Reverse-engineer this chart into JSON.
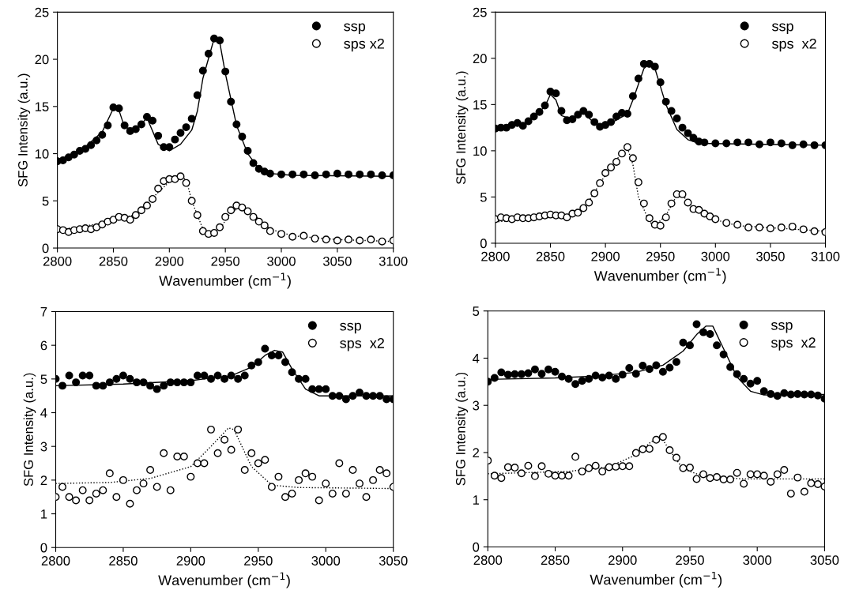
{
  "chart_data": [
    {
      "type": "scatter",
      "xlabel": "Wavenumber (cm$^{−1}$)",
      "ylabel": "SFG Intensity (a.u.)",
      "xlim": [
        2800,
        3100
      ],
      "xticks": [
        2800,
        2850,
        2900,
        2950,
        3000,
        3050,
        3100
      ],
      "ylim": [
        0,
        25
      ],
      "yticks": [
        0,
        5,
        10,
        15,
        20,
        25
      ],
      "legend": "top right",
      "grid": false,
      "marker": "circle",
      "series": [
        {
          "name": "ssp",
          "color": "#000000",
          "x": [
            2800,
            2805,
            2810,
            2815,
            2820,
            2825,
            2830,
            2835,
            2840,
            2845,
            2850,
            2855,
            2860,
            2865,
            2870,
            2875,
            2880,
            2885,
            2890,
            2895,
            2900,
            2905,
            2910,
            2915,
            2920,
            2925,
            2930,
            2935,
            2940,
            2945,
            2950,
            2955,
            2960,
            2965,
            2970,
            2975,
            2980,
            2985,
            2990,
            3000,
            3010,
            3020,
            3030,
            3040,
            3050,
            3060,
            3070,
            3080,
            3090,
            3100
          ],
          "values": [
            9.2,
            9.3,
            9.6,
            9.9,
            10.3,
            10.5,
            10.9,
            11.4,
            12.0,
            13.0,
            14.9,
            14.8,
            13.0,
            12.4,
            12.6,
            13.1,
            13.9,
            13.5,
            11.9,
            10.7,
            10.7,
            11.5,
            12.2,
            12.8,
            13.7,
            16.2,
            18.8,
            20.6,
            22.2,
            22.0,
            18.7,
            15.5,
            13.1,
            11.8,
            10.3,
            9.0,
            8.4,
            8.1,
            7.9,
            7.8,
            7.8,
            7.8,
            7.7,
            7.8,
            7.9,
            7.8,
            7.8,
            7.8,
            7.7,
            7.7
          ]
        },
        {
          "name": "sps x2",
          "color": "#ffffff",
          "x": [
            2800,
            2805,
            2810,
            2815,
            2820,
            2825,
            2830,
            2835,
            2840,
            2845,
            2850,
            2855,
            2860,
            2865,
            2870,
            2875,
            2880,
            2885,
            2890,
            2895,
            2900,
            2905,
            2910,
            2915,
            2920,
            2925,
            2930,
            2935,
            2940,
            2945,
            2950,
            2955,
            2960,
            2965,
            2970,
            2975,
            2980,
            2985,
            2990,
            3000,
            3010,
            3020,
            3030,
            3040,
            3050,
            3060,
            3070,
            3080,
            3090,
            3100
          ],
          "values": [
            2.0,
            1.9,
            1.7,
            1.9,
            2.0,
            2.1,
            2.0,
            2.2,
            2.5,
            2.8,
            3.0,
            3.3,
            3.2,
            3.0,
            3.5,
            4.0,
            4.5,
            5.2,
            6.3,
            7.1,
            7.3,
            7.3,
            7.6,
            6.9,
            5.0,
            3.5,
            1.8,
            1.5,
            1.6,
            2.2,
            3.3,
            4.0,
            4.5,
            4.3,
            3.9,
            3.3,
            2.8,
            2.4,
            1.8,
            1.5,
            1.2,
            1.3,
            1.0,
            0.9,
            0.8,
            0.9,
            0.8,
            0.9,
            0.7,
            0.8
          ]
        },
        {
          "type": "line",
          "marker": "none",
          "color": "#000000",
          "line_style": "solid",
          "x": [
            2800,
            2820,
            2840,
            2850,
            2855,
            2860,
            2870,
            2880,
            2890,
            2900,
            2910,
            2920,
            2925,
            2930,
            2940,
            2945,
            2950,
            2960,
            2970,
            2980,
            2990,
            3010,
            3100
          ],
          "values": [
            9.3,
            10.2,
            12.3,
            14.8,
            14.6,
            12.8,
            12.5,
            13.8,
            11.0,
            10.3,
            11.0,
            12.5,
            14.5,
            18.0,
            22.2,
            21.8,
            18.5,
            13.0,
            10.0,
            8.4,
            7.9,
            7.7,
            7.6
          ]
        },
        {
          "type": "line",
          "marker": "none",
          "color": "#000000",
          "line_style": "dotted",
          "x": [
            2800,
            2850,
            2870,
            2890,
            2900,
            2910,
            2915,
            2920,
            2930,
            2935,
            2945,
            2955,
            2965,
            2975,
            2990,
            3010,
            3050,
            3100
          ],
          "values": [
            1.9,
            2.8,
            3.6,
            5.9,
            7.0,
            7.5,
            7.3,
            5.0,
            2.0,
            1.3,
            2.0,
            3.8,
            4.4,
            3.6,
            2.0,
            1.3,
            0.9,
            0.7
          ]
        }
      ]
    },
    {
      "type": "scatter",
      "xlabel": "Wavenumber (cm$^{−1}$)",
      "ylabel": "SFG Intensity (a.u.)",
      "xlim": [
        2800,
        3100
      ],
      "xticks": [
        2800,
        2850,
        2900,
        2950,
        3000,
        3050,
        3100
      ],
      "ylim": [
        0,
        25
      ],
      "yticks": [
        0,
        5,
        10,
        15,
        20,
        25
      ],
      "legend": "top right",
      "grid": false,
      "marker": "circle",
      "series": [
        {
          "name": "ssp",
          "color": "#000000",
          "x": [
            2800,
            2805,
            2810,
            2815,
            2820,
            2825,
            2830,
            2835,
            2840,
            2845,
            2850,
            2855,
            2860,
            2865,
            2870,
            2875,
            2880,
            2885,
            2890,
            2895,
            2900,
            2905,
            2910,
            2915,
            2920,
            2925,
            2930,
            2935,
            2940,
            2945,
            2950,
            2955,
            2960,
            2965,
            2970,
            2975,
            2980,
            2985,
            2990,
            3000,
            3010,
            3020,
            3030,
            3040,
            3050,
            3060,
            3070,
            3080,
            3090,
            3100
          ],
          "values": [
            12.4,
            12.5,
            12.5,
            12.8,
            13.0,
            12.7,
            13.2,
            13.7,
            14.2,
            14.9,
            16.4,
            16.2,
            14.3,
            13.3,
            13.4,
            13.9,
            14.3,
            13.9,
            13.1,
            12.6,
            12.8,
            13.1,
            13.7,
            14.1,
            14.0,
            15.9,
            17.8,
            19.4,
            19.4,
            19.1,
            17.4,
            15.3,
            14.3,
            13.5,
            12.5,
            11.9,
            11.4,
            11.0,
            10.9,
            10.8,
            10.8,
            10.9,
            10.9,
            10.7,
            10.9,
            10.8,
            10.6,
            10.7,
            10.6,
            10.6
          ]
        },
        {
          "name": "sps  x2",
          "color": "#ffffff",
          "x": [
            2800,
            2805,
            2810,
            2815,
            2820,
            2825,
            2830,
            2835,
            2840,
            2845,
            2850,
            2855,
            2860,
            2865,
            2870,
            2875,
            2880,
            2885,
            2890,
            2895,
            2900,
            2905,
            2910,
            2915,
            2920,
            2925,
            2930,
            2935,
            2940,
            2945,
            2950,
            2955,
            2960,
            2965,
            2970,
            2975,
            2980,
            2985,
            2990,
            2995,
            3000,
            3010,
            3020,
            3030,
            3040,
            3050,
            3060,
            3070,
            3080,
            3090,
            3100
          ],
          "values": [
            2.6,
            2.8,
            2.7,
            2.6,
            2.8,
            2.7,
            2.7,
            2.8,
            2.9,
            3.0,
            3.1,
            3.0,
            3.0,
            2.8,
            3.2,
            3.3,
            3.8,
            4.4,
            5.4,
            6.5,
            7.6,
            8.2,
            8.8,
            9.7,
            10.4,
            9.2,
            6.6,
            4.3,
            2.7,
            2.0,
            1.9,
            2.8,
            4.3,
            5.3,
            5.3,
            4.4,
            3.7,
            3.6,
            3.2,
            2.9,
            2.6,
            2.2,
            2.0,
            1.7,
            1.7,
            1.6,
            1.7,
            1.8,
            1.5,
            1.3,
            1.2
          ]
        },
        {
          "type": "line",
          "marker": "none",
          "color": "#000000",
          "line_style": "solid",
          "x": [
            2800,
            2830,
            2845,
            2850,
            2855,
            2860,
            2870,
            2880,
            2890,
            2895,
            2905,
            2920,
            2925,
            2935,
            2940,
            2945,
            2955,
            2965,
            2975,
            2985,
            3100
          ],
          "values": [
            12.3,
            13.1,
            14.8,
            16.1,
            15.5,
            13.8,
            13.4,
            14.1,
            13.0,
            12.6,
            13.0,
            14.0,
            15.5,
            18.9,
            19.4,
            18.9,
            15.0,
            12.3,
            11.2,
            10.8,
            10.6
          ]
        },
        {
          "type": "line",
          "marker": "none",
          "color": "#000000",
          "line_style": "dotted",
          "x": [
            2800,
            2860,
            2880,
            2900,
            2915,
            2920,
            2925,
            2930,
            2940,
            2945,
            2955,
            2965,
            2970,
            2980,
            2995,
            3020,
            3100
          ],
          "values": [
            2.3,
            2.9,
            3.6,
            7.4,
            9.8,
            10.3,
            8.5,
            5.0,
            2.3,
            1.9,
            3.0,
            5.2,
            5.2,
            3.8,
            2.7,
            1.9,
            1.3
          ]
        }
      ]
    },
    {
      "type": "scatter",
      "xlabel": "Wavenumber (cm$^{−1}$)",
      "ylabel": "SFG Intensity (a.u.)",
      "xlim": [
        2800,
        3050
      ],
      "xticks": [
        2800,
        2850,
        2900,
        2950,
        3000,
        3050
      ],
      "ylim": [
        0,
        7
      ],
      "yticks": [
        0,
        1,
        2,
        3,
        4,
        5,
        6,
        7
      ],
      "legend": "top right",
      "grid": false,
      "marker": "circle",
      "series": [
        {
          "name": "ssp",
          "color": "#000000",
          "x": [
            2800,
            2805,
            2810,
            2815,
            2820,
            2825,
            2830,
            2835,
            2840,
            2845,
            2850,
            2855,
            2860,
            2865,
            2870,
            2875,
            2880,
            2885,
            2890,
            2895,
            2900,
            2905,
            2910,
            2915,
            2920,
            2925,
            2930,
            2935,
            2940,
            2945,
            2950,
            2955,
            2960,
            2965,
            2970,
            2975,
            2980,
            2985,
            2990,
            2995,
            3000,
            3005,
            3010,
            3015,
            3020,
            3025,
            3030,
            3035,
            3040,
            3045,
            3050
          ],
          "values": [
            5.0,
            4.8,
            5.1,
            4.9,
            5.1,
            5.1,
            4.8,
            4.8,
            4.9,
            5.0,
            5.1,
            5.0,
            4.9,
            4.9,
            4.8,
            4.7,
            4.8,
            4.9,
            4.9,
            4.9,
            4.9,
            5.1,
            5.1,
            5.0,
            5.1,
            5.0,
            5.1,
            5.0,
            5.1,
            5.4,
            5.5,
            5.9,
            5.7,
            5.7,
            5.5,
            5.2,
            5.0,
            5.0,
            4.7,
            4.7,
            4.7,
            4.5,
            4.5,
            4.4,
            4.5,
            4.6,
            4.5,
            4.5,
            4.5,
            4.4,
            4.4
          ]
        },
        {
          "name": "sps  x2",
          "color": "#ffffff",
          "x": [
            2800,
            2805,
            2810,
            2815,
            2820,
            2825,
            2830,
            2835,
            2840,
            2845,
            2850,
            2855,
            2860,
            2865,
            2870,
            2875,
            2880,
            2885,
            2890,
            2895,
            2900,
            2905,
            2910,
            2915,
            2920,
            2925,
            2930,
            2935,
            2940,
            2945,
            2950,
            2955,
            2960,
            2965,
            2970,
            2975,
            2980,
            2985,
            2990,
            2995,
            3000,
            3005,
            3010,
            3015,
            3020,
            3025,
            3030,
            3035,
            3040,
            3045,
            3050
          ],
          "values": [
            1.5,
            1.8,
            1.5,
            1.4,
            1.7,
            1.4,
            1.6,
            1.7,
            2.2,
            1.5,
            2.0,
            1.3,
            1.7,
            1.9,
            2.3,
            1.8,
            2.8,
            1.7,
            2.7,
            2.7,
            2.1,
            2.5,
            2.5,
            3.5,
            2.8,
            3.2,
            2.9,
            3.5,
            2.3,
            2.8,
            2.5,
            2.6,
            1.8,
            2.1,
            1.5,
            1.6,
            2.0,
            2.2,
            2.1,
            1.4,
            1.9,
            1.6,
            2.5,
            1.6,
            2.3,
            1.9,
            1.5,
            2.0,
            2.3,
            2.2,
            1.8
          ]
        },
        {
          "type": "line",
          "marker": "none",
          "color": "#000000",
          "line_style": "solid",
          "x": [
            2800,
            2850,
            2900,
            2930,
            2945,
            2955,
            2962,
            2968,
            2975,
            2985,
            2995,
            3050
          ],
          "values": [
            4.8,
            4.85,
            4.95,
            5.1,
            5.35,
            5.7,
            5.85,
            5.8,
            5.3,
            4.7,
            4.5,
            4.5
          ]
        },
        {
          "type": "line",
          "marker": "none",
          "color": "#000000",
          "line_style": "dotted",
          "x": [
            2800,
            2840,
            2870,
            2900,
            2915,
            2928,
            2932,
            2945,
            2960,
            2980,
            3050
          ],
          "values": [
            1.9,
            1.93,
            2.05,
            2.4,
            3.0,
            3.55,
            3.5,
            2.4,
            1.85,
            1.78,
            1.75
          ]
        }
      ]
    },
    {
      "type": "scatter",
      "xlabel": "Wavenumber (cm$^{−1}$)",
      "ylabel": "SFG Intensity (a.u.)",
      "xlim": [
        2800,
        3050
      ],
      "xticks": [
        2800,
        2850,
        2900,
        2950,
        3000,
        3050
      ],
      "ylim": [
        0,
        5
      ],
      "yticks": [
        0,
        1,
        2,
        3,
        4,
        5
      ],
      "legend": "top right",
      "grid": false,
      "marker": "circle",
      "series": [
        {
          "name": "ssp",
          "color": "#000000",
          "x": [
            2800,
            2805,
            2810,
            2815,
            2820,
            2825,
            2830,
            2835,
            2840,
            2845,
            2850,
            2855,
            2860,
            2865,
            2870,
            2875,
            2880,
            2885,
            2890,
            2895,
            2900,
            2905,
            2910,
            2915,
            2920,
            2925,
            2930,
            2935,
            2940,
            2945,
            2950,
            2955,
            2960,
            2965,
            2970,
            2975,
            2980,
            2985,
            2990,
            2995,
            3000,
            3005,
            3010,
            3015,
            3020,
            3025,
            3030,
            3035,
            3040,
            3045,
            3050
          ],
          "values": [
            3.5,
            3.58,
            3.7,
            3.65,
            3.66,
            3.66,
            3.68,
            3.76,
            3.67,
            3.76,
            3.71,
            3.61,
            3.56,
            3.45,
            3.52,
            3.56,
            3.63,
            3.59,
            3.63,
            3.56,
            3.65,
            3.79,
            3.67,
            3.84,
            3.77,
            3.85,
            3.71,
            3.8,
            3.92,
            4.33,
            4.27,
            4.72,
            4.55,
            4.51,
            4.27,
            4.08,
            3.81,
            3.66,
            3.56,
            3.46,
            3.52,
            3.3,
            3.24,
            3.2,
            3.26,
            3.23,
            3.24,
            3.23,
            3.23,
            3.21,
            3.14
          ]
        },
        {
          "name": "sps  x2",
          "color": "#ffffff",
          "x": [
            2800,
            2805,
            2810,
            2815,
            2820,
            2825,
            2830,
            2835,
            2840,
            2845,
            2850,
            2855,
            2860,
            2865,
            2870,
            2875,
            2880,
            2885,
            2890,
            2895,
            2900,
            2905,
            2910,
            2915,
            2920,
            2925,
            2930,
            2935,
            2940,
            2945,
            2950,
            2955,
            2960,
            2965,
            2970,
            2975,
            2980,
            2985,
            2990,
            2995,
            3000,
            3005,
            3010,
            3015,
            3020,
            3025,
            3030,
            3035,
            3040,
            3045,
            3050
          ],
          "values": [
            1.83,
            1.51,
            1.46,
            1.69,
            1.68,
            1.56,
            1.72,
            1.5,
            1.71,
            1.55,
            1.51,
            1.51,
            1.51,
            1.91,
            1.6,
            1.67,
            1.72,
            1.6,
            1.69,
            1.7,
            1.71,
            1.71,
            1.99,
            2.07,
            2.08,
            2.27,
            2.33,
            2.05,
            1.89,
            1.67,
            1.68,
            1.44,
            1.54,
            1.46,
            1.48,
            1.43,
            1.43,
            1.57,
            1.34,
            1.54,
            1.54,
            1.51,
            1.38,
            1.54,
            1.63,
            1.13,
            1.47,
            1.17,
            1.35,
            1.33,
            1.28
          ]
        },
        {
          "type": "line",
          "marker": "none",
          "color": "#000000",
          "line_style": "solid",
          "x": [
            2800,
            2850,
            2880,
            2910,
            2930,
            2945,
            2955,
            2962,
            2967,
            2975,
            2985,
            2995,
            3005,
            3050
          ],
          "values": [
            3.55,
            3.58,
            3.62,
            3.7,
            3.85,
            4.15,
            4.5,
            4.68,
            4.68,
            4.2,
            3.6,
            3.3,
            3.22,
            3.23
          ]
        },
        {
          "type": "line",
          "marker": "none",
          "color": "#000000",
          "line_style": "dotted",
          "x": [
            2800,
            2860,
            2890,
            2910,
            2920,
            2928,
            2935,
            2945,
            2960,
            2990,
            3050
          ],
          "values": [
            1.55,
            1.6,
            1.7,
            1.95,
            2.2,
            2.35,
            2.05,
            1.65,
            1.5,
            1.44,
            1.44
          ]
        }
      ]
    }
  ]
}
